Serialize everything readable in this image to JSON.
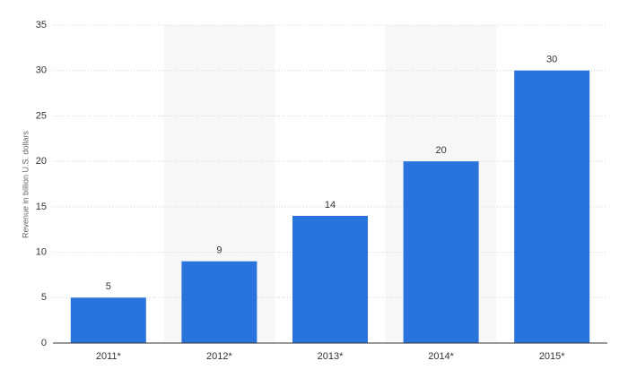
{
  "chart_data": {
    "type": "bar",
    "y_label": "Revenue in billion U.S. dollars",
    "categories": [
      "2011*",
      "2012*",
      "2013*",
      "2014*",
      "2015*"
    ],
    "values": [
      5,
      9,
      14,
      20,
      30
    ],
    "color": "#2874dc",
    "ylim": [
      0,
      35
    ],
    "yticks": [
      0,
      5,
      10,
      15,
      20,
      25,
      30,
      35
    ],
    "grid": true
  }
}
